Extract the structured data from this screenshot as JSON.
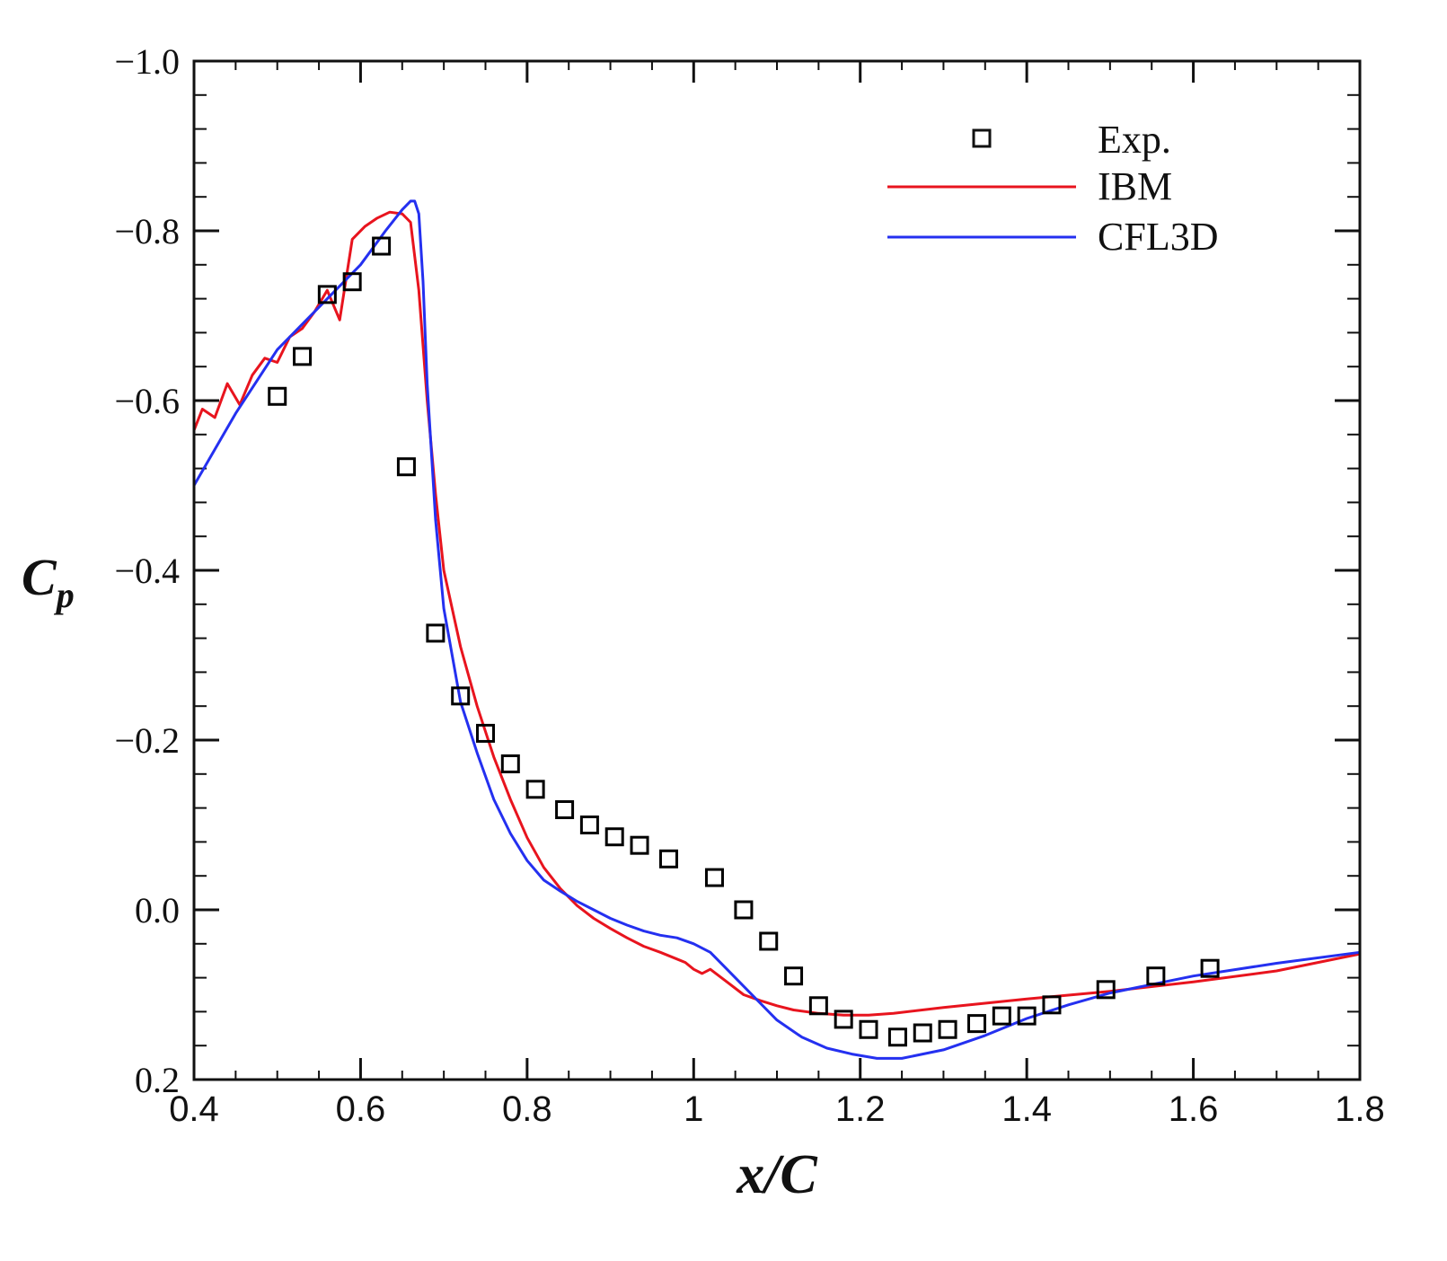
{
  "chart_data": {
    "type": "line",
    "title": "",
    "xlabel": "x/C",
    "ylabel_main": "C",
    "ylabel_sub": "p",
    "xlim": [
      0.4,
      1.8
    ],
    "ylim": [
      0.2,
      -1.0
    ],
    "y_inverted": true,
    "grid": false,
    "legend_position": "top-right",
    "x_ticks": [
      0.4,
      0.6,
      0.8,
      1.0,
      1.2,
      1.4,
      1.6,
      1.8
    ],
    "x_tick_labels": [
      "0.4",
      "0.6",
      "0.8",
      "1",
      "1.2",
      "1.4",
      "1.6",
      "1.8"
    ],
    "y_ticks": [
      -1.0,
      -0.8,
      -0.6,
      -0.4,
      -0.2,
      0.0,
      0.2
    ],
    "y_tick_labels": [
      "−1.0",
      "−0.8",
      "−0.6",
      "−0.4",
      "−0.2",
      "0.0",
      "0.2"
    ],
    "series": [
      {
        "name": "Exp.",
        "kind": "markers",
        "marker": "square",
        "color": "#000000",
        "x": [
          0.5,
          0.53,
          0.56,
          0.59,
          0.625,
          0.655,
          0.69,
          0.72,
          0.75,
          0.78,
          0.81,
          0.845,
          0.875,
          0.905,
          0.935,
          0.97,
          1.025,
          1.06,
          1.09,
          1.12,
          1.15,
          1.18,
          1.21,
          1.245,
          1.275,
          1.305,
          1.34,
          1.37,
          1.4,
          1.43,
          1.495,
          1.555,
          1.62
        ],
        "y": [
          -0.605,
          -0.652,
          -0.725,
          -0.74,
          -0.782,
          -0.522,
          -0.326,
          -0.252,
          -0.208,
          -0.172,
          -0.142,
          -0.118,
          -0.1,
          -0.086,
          -0.076,
          -0.06,
          -0.038,
          0.0,
          0.037,
          0.078,
          0.113,
          0.129,
          0.141,
          0.15,
          0.145,
          0.141,
          0.134,
          0.125,
          0.125,
          0.112,
          0.094,
          0.078,
          0.069
        ]
      },
      {
        "name": "IBM",
        "kind": "line",
        "color": "#e8141e",
        "x": [
          0.4,
          0.41,
          0.425,
          0.44,
          0.455,
          0.47,
          0.485,
          0.5,
          0.515,
          0.53,
          0.545,
          0.56,
          0.575,
          0.59,
          0.605,
          0.62,
          0.635,
          0.65,
          0.66,
          0.67,
          0.68,
          0.69,
          0.7,
          0.72,
          0.74,
          0.76,
          0.78,
          0.8,
          0.82,
          0.84,
          0.86,
          0.88,
          0.9,
          0.92,
          0.94,
          0.96,
          0.98,
          0.99,
          1.0,
          1.01,
          1.02,
          1.04,
          1.06,
          1.08,
          1.1,
          1.12,
          1.15,
          1.18,
          1.21,
          1.24,
          1.3,
          1.4,
          1.5,
          1.6,
          1.7,
          1.8
        ],
        "y": [
          -0.565,
          -0.59,
          -0.58,
          -0.62,
          -0.595,
          -0.63,
          -0.65,
          -0.645,
          -0.675,
          -0.685,
          -0.705,
          -0.73,
          -0.695,
          -0.79,
          -0.805,
          -0.815,
          -0.822,
          -0.82,
          -0.81,
          -0.73,
          -0.6,
          -0.49,
          -0.4,
          -0.31,
          -0.24,
          -0.18,
          -0.13,
          -0.085,
          -0.05,
          -0.025,
          -0.005,
          0.01,
          0.022,
          0.033,
          0.043,
          0.05,
          0.058,
          0.062,
          0.07,
          0.075,
          0.07,
          0.085,
          0.1,
          0.107,
          0.113,
          0.118,
          0.122,
          0.124,
          0.124,
          0.122,
          0.115,
          0.105,
          0.096,
          0.085,
          0.072,
          0.052
        ]
      },
      {
        "name": "CFL3D",
        "kind": "line",
        "color": "#2430f0",
        "x": [
          0.4,
          0.45,
          0.5,
          0.55,
          0.6,
          0.63,
          0.65,
          0.66,
          0.665,
          0.67,
          0.675,
          0.68,
          0.69,
          0.7,
          0.72,
          0.74,
          0.76,
          0.78,
          0.8,
          0.82,
          0.84,
          0.86,
          0.88,
          0.9,
          0.92,
          0.94,
          0.96,
          0.98,
          1.0,
          1.02,
          1.04,
          1.06,
          1.08,
          1.1,
          1.13,
          1.16,
          1.19,
          1.22,
          1.25,
          1.3,
          1.35,
          1.4,
          1.45,
          1.5,
          1.6,
          1.7,
          1.8
        ],
        "y": [
          -0.5,
          -0.585,
          -0.66,
          -0.71,
          -0.76,
          -0.8,
          -0.825,
          -0.835,
          -0.835,
          -0.82,
          -0.74,
          -0.62,
          -0.46,
          -0.355,
          -0.245,
          -0.185,
          -0.13,
          -0.09,
          -0.058,
          -0.035,
          -0.022,
          -0.01,
          0.0,
          0.01,
          0.018,
          0.025,
          0.03,
          0.033,
          0.04,
          0.05,
          0.07,
          0.09,
          0.11,
          0.13,
          0.15,
          0.163,
          0.17,
          0.175,
          0.175,
          0.165,
          0.148,
          0.128,
          0.112,
          0.098,
          0.078,
          0.063,
          0.05
        ]
      }
    ]
  }
}
